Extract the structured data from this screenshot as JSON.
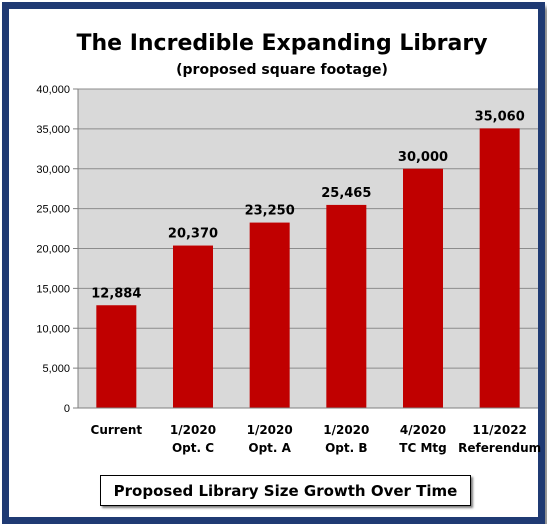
{
  "chart_data": {
    "type": "bar",
    "title": "The Incredible Expanding Library",
    "subtitle": "(proposed square footage)",
    "caption": "Proposed  Library  Size  Growth  Over  Time",
    "categories": [
      [
        "Current"
      ],
      [
        "1/2020",
        "Opt. C"
      ],
      [
        "1/2020",
        "Opt. A"
      ],
      [
        "1/2020",
        "Opt. B"
      ],
      [
        "4/2020",
        "TC Mtg"
      ],
      [
        "11/2022",
        "Referendum"
      ]
    ],
    "values": [
      12884,
      20370,
      23250,
      25465,
      30000,
      35060
    ],
    "value_labels": [
      "12,884",
      "20,370",
      "23,250",
      "25,465",
      "30,000",
      "35,060"
    ],
    "ylim": [
      0,
      40000
    ],
    "yticks": [
      "0",
      "5,000",
      "10,000",
      "15,000",
      "20,000",
      "25,000",
      "30,000",
      "35,000",
      "40,000"
    ],
    "ytick_values": [
      0,
      5000,
      10000,
      15000,
      20000,
      25000,
      30000,
      35000,
      40000
    ],
    "grid": true,
    "colors": {
      "bar": "#c00000",
      "plot_bg": "#d9d9d9",
      "frame": "#1f3a73"
    }
  }
}
